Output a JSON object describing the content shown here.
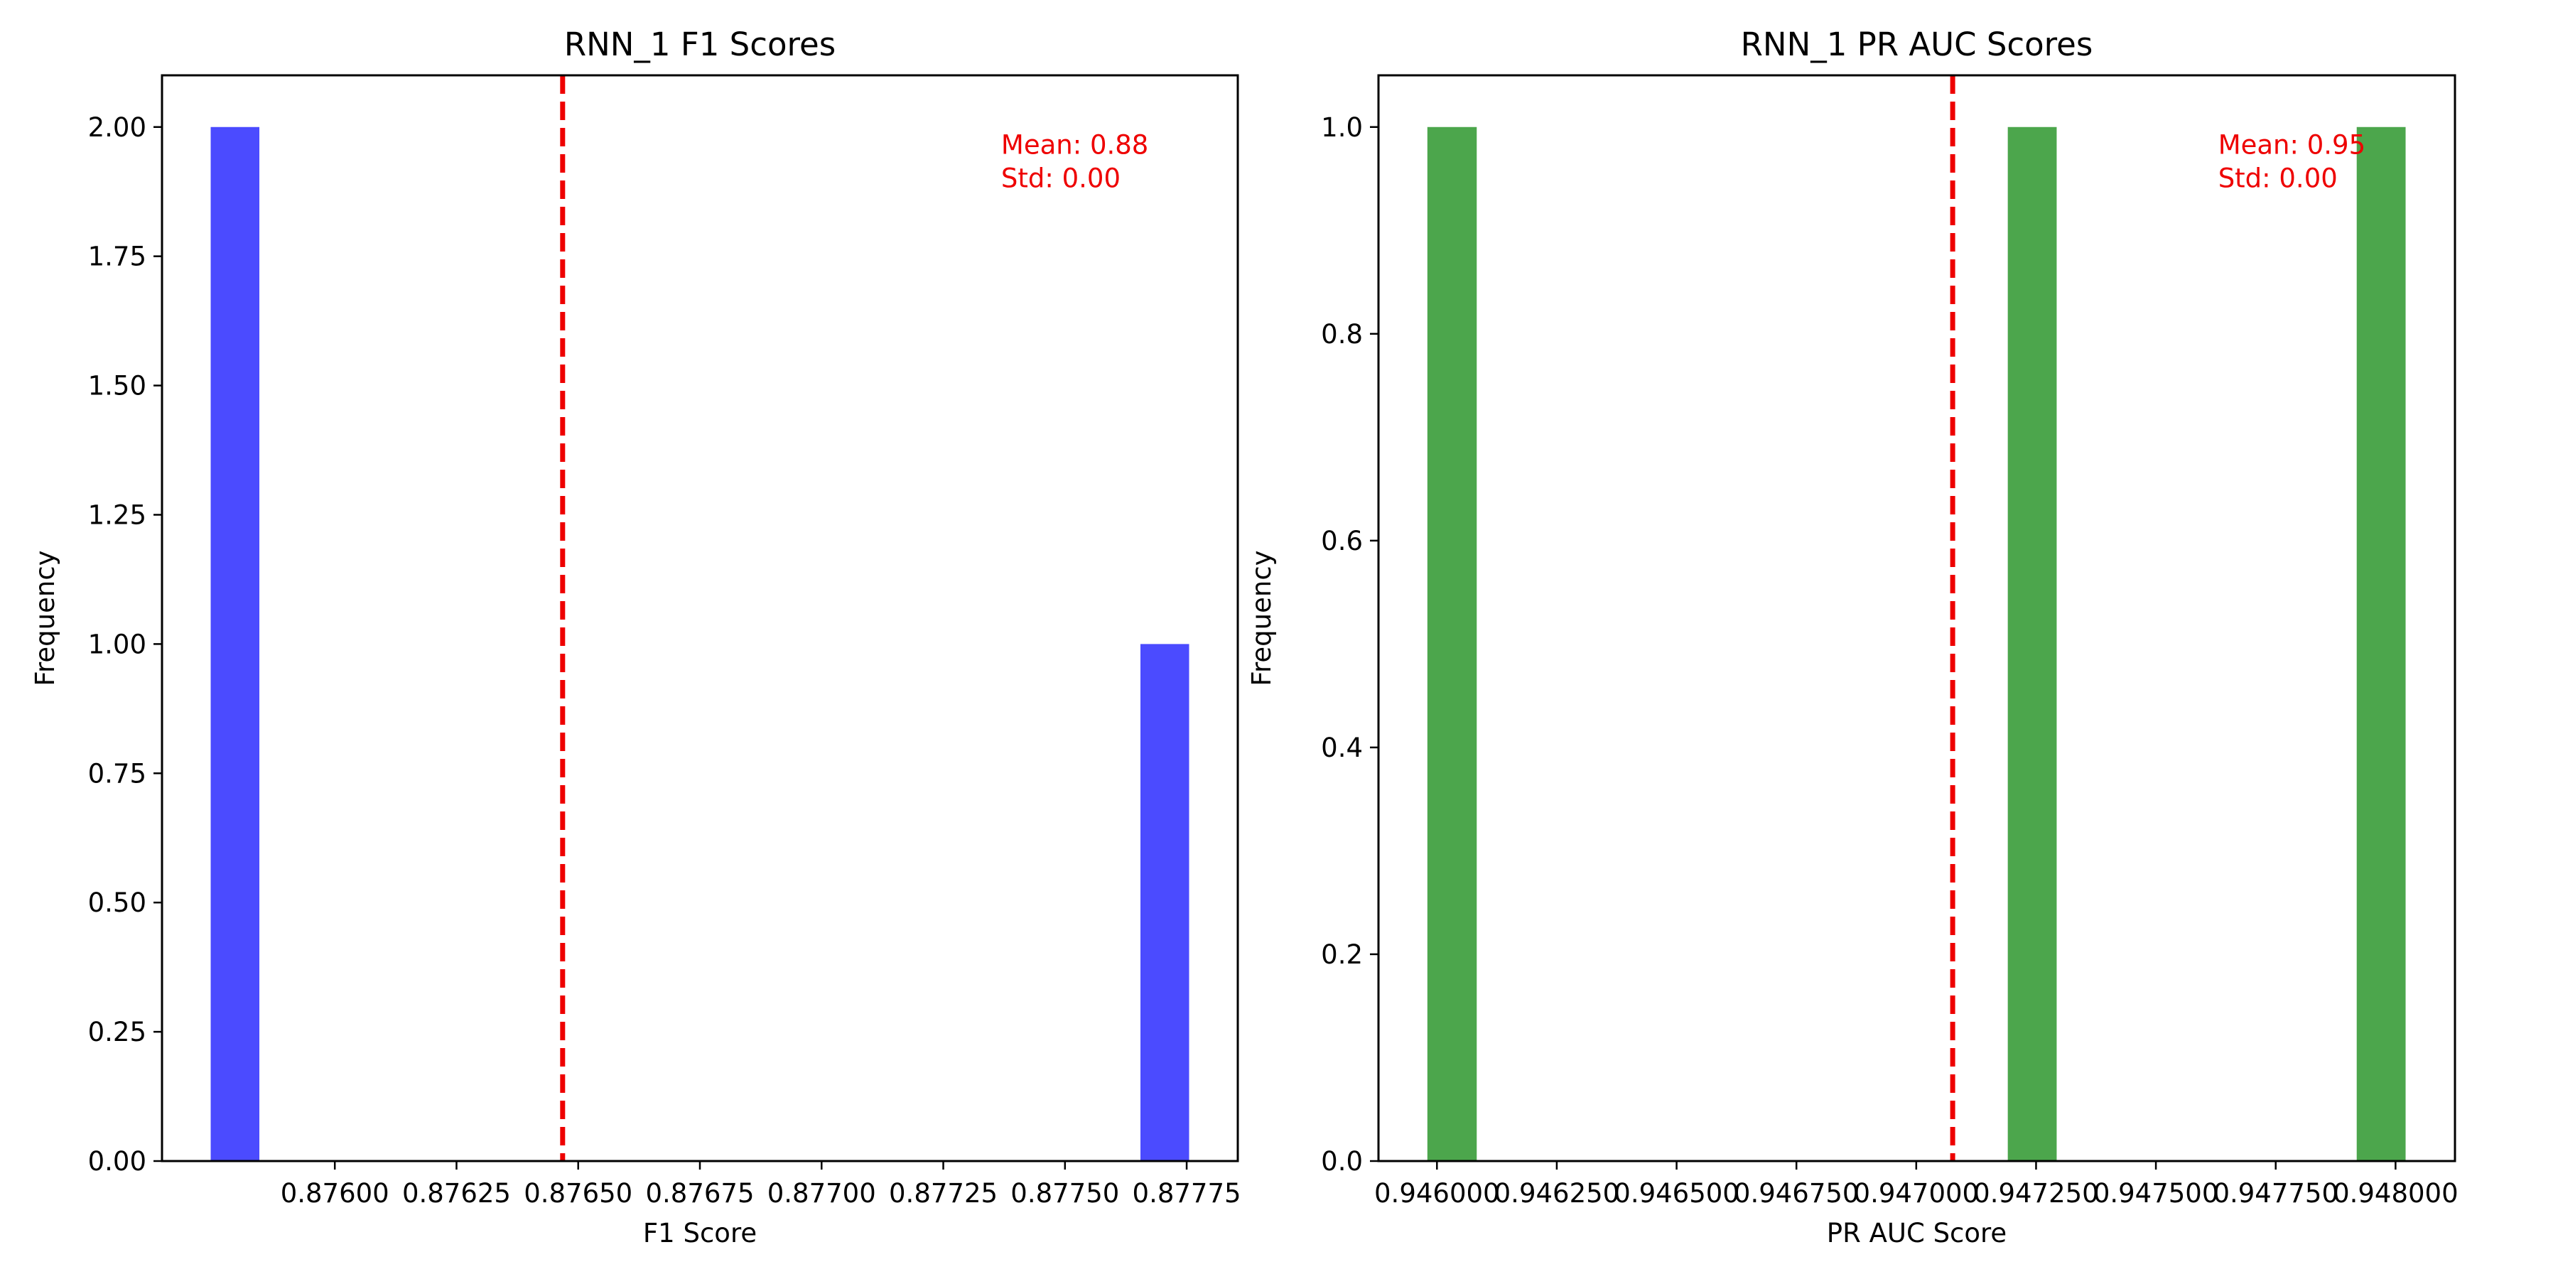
{
  "chart_data": [
    {
      "type": "bar",
      "title": "RNN_1 F1 Scores",
      "xlabel": "F1 Score",
      "ylabel": "Frequency",
      "xlim": [
        0.875645,
        0.877855
      ],
      "ylim": [
        0,
        2.1
      ],
      "xticks": [
        0.876,
        0.87625,
        0.8765,
        0.87675,
        0.877,
        0.87725,
        0.8775,
        0.87775
      ],
      "xtick_labels": [
        "0.87600",
        "0.87625",
        "0.87650",
        "0.87675",
        "0.87700",
        "0.87725",
        "0.87750",
        "0.87775"
      ],
      "yticks": [
        0,
        0.25,
        0.5,
        0.75,
        1.0,
        1.25,
        1.5,
        1.75,
        2.0
      ],
      "ytick_labels": [
        "0.00",
        "0.25",
        "0.50",
        "0.75",
        "1.00",
        "1.25",
        "1.50",
        "1.75",
        "2.00"
      ],
      "bar_color": "#4b4bff",
      "bars": [
        {
          "x0": 0.875745,
          "x1": 0.875845,
          "value": 2
        },
        {
          "x0": 0.877655,
          "x1": 0.877755,
          "value": 1
        }
      ],
      "mean_line": {
        "x": 0.876468,
        "color": "#ee0000",
        "style": "dashed"
      },
      "annotation": {
        "lines": [
          "Mean: 0.88",
          "Std: 0.00"
        ],
        "color": "#ee0000",
        "placement": "top-right"
      }
    },
    {
      "type": "bar",
      "title": "RNN_1 PR AUC Scores",
      "xlabel": "PR AUC Score",
      "ylabel": "Frequency",
      "xlim": [
        0.945878,
        0.948124
      ],
      "ylim": [
        0,
        1.05
      ],
      "xticks": [
        0.946,
        0.94625,
        0.9465,
        0.94675,
        0.947,
        0.94725,
        0.9475,
        0.94775,
        0.948
      ],
      "xtick_labels": [
        "0.946000",
        "0.946250",
        "0.946500",
        "0.946750",
        "0.947000",
        "0.947250",
        "0.947500",
        "0.947750",
        "0.948000"
      ],
      "yticks": [
        0,
        0.2,
        0.4,
        0.6,
        0.8,
        1.0
      ],
      "ytick_labels": [
        "0.0",
        "0.2",
        "0.4",
        "0.6",
        "0.8",
        "1.0"
      ],
      "bar_color": "#4ca64c",
      "bars": [
        {
          "x0": 0.94598,
          "x1": 0.946083,
          "value": 1
        },
        {
          "x0": 0.947191,
          "x1": 0.947293,
          "value": 1
        },
        {
          "x0": 0.947919,
          "x1": 0.948021,
          "value": 1
        }
      ],
      "mean_line": {
        "x": 0.947076,
        "color": "#ee0000",
        "style": "dashed"
      },
      "annotation": {
        "lines": [
          "Mean: 0.95",
          "Std: 0.00"
        ],
        "color": "#ee0000",
        "placement": "top-right"
      }
    }
  ]
}
